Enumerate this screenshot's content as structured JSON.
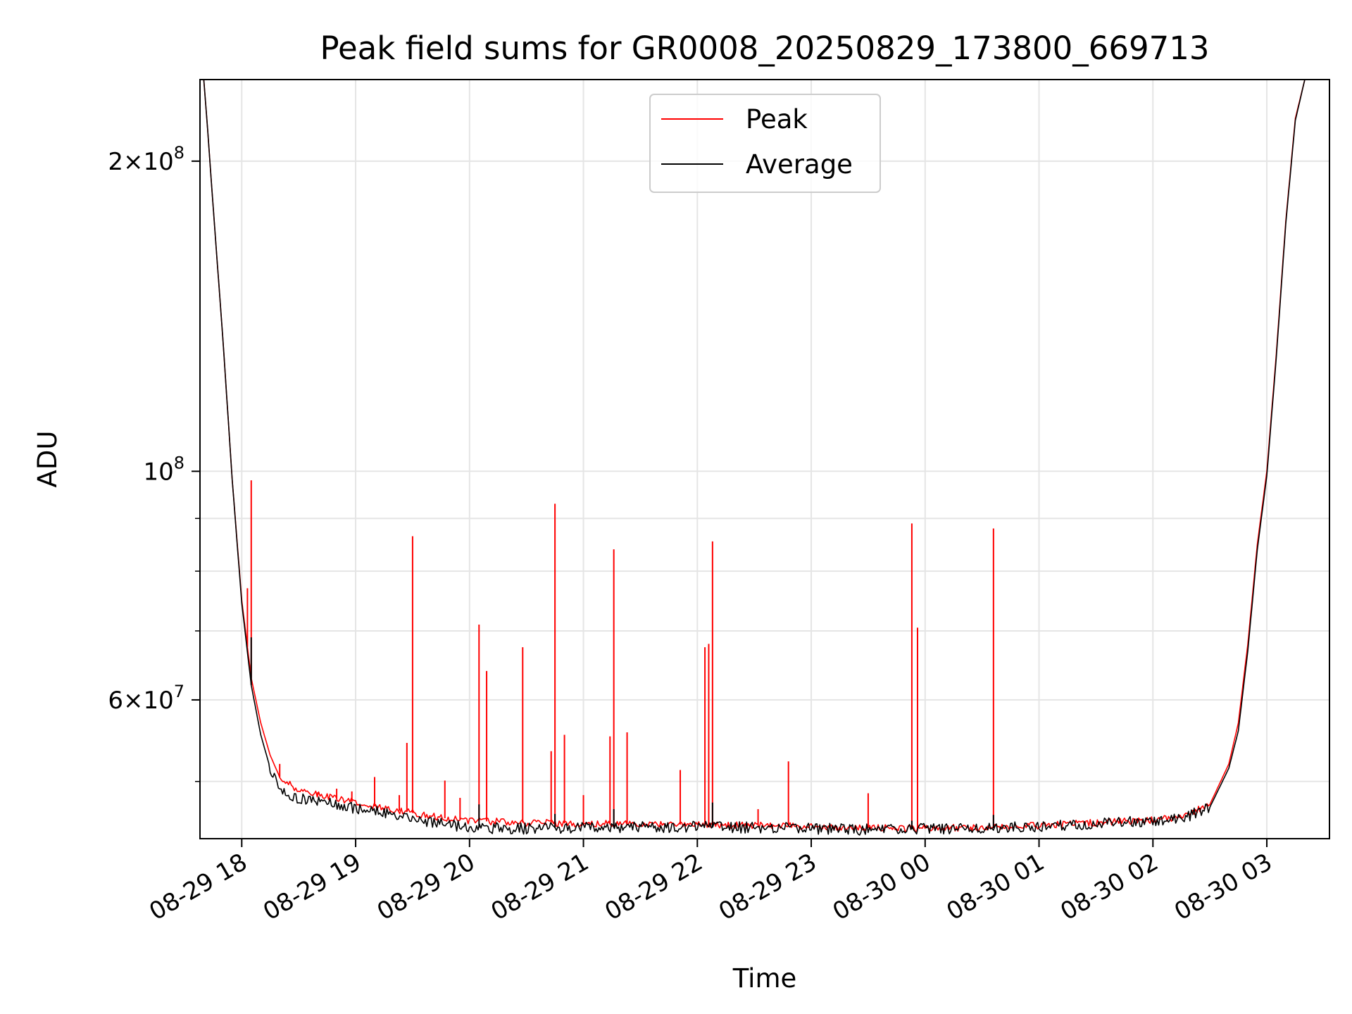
{
  "chart_data": {
    "type": "line",
    "title": "Peak field sums for GR0008_20250829_173800_669713",
    "xlabel": "Time",
    "ylabel": "ADU",
    "y_scale": "log",
    "ylim": [
      44000000,
      240000000
    ],
    "xlim": [
      "2025-08-29 17:38",
      "2025-08-30 03:33"
    ],
    "grid": true,
    "legend_position": "upper center",
    "x_ticks": [
      "08-29 18",
      "08-29 19",
      "08-29 20",
      "08-29 21",
      "08-29 22",
      "08-29 23",
      "08-30 00",
      "08-30 01",
      "08-30 02",
      "08-30 03"
    ],
    "y_ticks": [
      {
        "value": 200000000,
        "mant": "2",
        "times": "×",
        "base": "10",
        "exp": "8"
      },
      {
        "value": 100000000,
        "mant": "",
        "times": "",
        "base": "10",
        "exp": "8"
      },
      {
        "value": 60000000,
        "mant": "6",
        "times": "×",
        "base": "10",
        "exp": "7"
      }
    ],
    "series": [
      {
        "name": "Peak",
        "color": "#ff0000",
        "points": [
          [
            "2025-08-29 17:40",
            240000000
          ],
          [
            "2025-08-29 17:42",
            215000000
          ],
          [
            "2025-08-29 17:45",
            180000000
          ],
          [
            "2025-08-29 17:50",
            135000000
          ],
          [
            "2025-08-29 17:55",
            98000000
          ],
          [
            "2025-08-29 18:00",
            75000000
          ],
          [
            "2025-08-29 18:05",
            63000000
          ],
          [
            "2025-08-29 18:10",
            57000000
          ],
          [
            "2025-08-29 18:15",
            53000000
          ],
          [
            "2025-08-29 18:20",
            50500000
          ],
          [
            "2025-08-29 18:30",
            49000000
          ],
          [
            "2025-08-29 18:45",
            48300000
          ],
          [
            "2025-08-29 19:00",
            47700000
          ],
          [
            "2025-08-29 19:15",
            47100000
          ],
          [
            "2025-08-29 19:30",
            46600000
          ],
          [
            "2025-08-29 19:45",
            46100000
          ],
          [
            "2025-08-29 20:00",
            45800000
          ],
          [
            "2025-08-29 20:30",
            45600000
          ],
          [
            "2025-08-29 21:00",
            45500000
          ],
          [
            "2025-08-29 22:00",
            45400000
          ],
          [
            "2025-08-29 23:00",
            45200000
          ],
          [
            "2025-08-29 23:30",
            45050000
          ],
          [
            "2025-08-30 00:00",
            45050000
          ],
          [
            "2025-08-30 00:30",
            45100000
          ],
          [
            "2025-08-30 01:00",
            45300000
          ],
          [
            "2025-08-30 01:30",
            45600000
          ],
          [
            "2025-08-30 02:00",
            45900000
          ],
          [
            "2025-08-30 02:15",
            46200000
          ],
          [
            "2025-08-30 02:30",
            47500000
          ],
          [
            "2025-08-30 02:40",
            52000000
          ],
          [
            "2025-08-30 02:45",
            57000000
          ],
          [
            "2025-08-30 02:50",
            68000000
          ],
          [
            "2025-08-30 02:55",
            85000000
          ],
          [
            "2025-08-30 03:00",
            100000000
          ],
          [
            "2025-08-30 03:05",
            130000000
          ],
          [
            "2025-08-30 03:10",
            175000000
          ],
          [
            "2025-08-30 03:15",
            220000000
          ],
          [
            "2025-08-30 03:20",
            240000000
          ],
          [
            "2025-08-30 03:33",
            240000000
          ]
        ],
        "spikes": [
          [
            "2025-08-29 18:05",
            98000000
          ],
          [
            "2025-08-29 18:03",
            77000000
          ],
          [
            "2025-08-29 18:20",
            52000000
          ],
          [
            "2025-08-29 18:40",
            48800000
          ],
          [
            "2025-08-29 18:50",
            49200000
          ],
          [
            "2025-08-29 18:58",
            48900000
          ],
          [
            "2025-08-29 19:10",
            50500000
          ],
          [
            "2025-08-29 19:23",
            48500000
          ],
          [
            "2025-08-29 19:27",
            54500000
          ],
          [
            "2025-08-29 19:30",
            86500000
          ],
          [
            "2025-08-29 19:47",
            50100000
          ],
          [
            "2025-08-29 19:55",
            48200000
          ],
          [
            "2025-08-29 20:05",
            71000000
          ],
          [
            "2025-08-29 20:09",
            64000000
          ],
          [
            "2025-08-29 20:28",
            67500000
          ],
          [
            "2025-08-29 20:43",
            53500000
          ],
          [
            "2025-08-29 20:45",
            93000000
          ],
          [
            "2025-08-29 20:50",
            55500000
          ],
          [
            "2025-08-29 21:00",
            48500000
          ],
          [
            "2025-08-29 21:14",
            55300000
          ],
          [
            "2025-08-29 21:16",
            84000000
          ],
          [
            "2025-08-29 21:23",
            55800000
          ],
          [
            "2025-08-29 21:51",
            51300000
          ],
          [
            "2025-08-29 22:04",
            67500000
          ],
          [
            "2025-08-29 22:06",
            68000000
          ],
          [
            "2025-08-29 22:08",
            85500000
          ],
          [
            "2025-08-29 22:32",
            47000000
          ],
          [
            "2025-08-29 22:48",
            52300000
          ],
          [
            "2025-08-29 23:30",
            48700000
          ],
          [
            "2025-08-29 23:53",
            89000000
          ],
          [
            "2025-08-29 23:56",
            70500000
          ],
          [
            "2025-08-30 00:36",
            88000000
          ]
        ]
      },
      {
        "name": "Average",
        "color": "#000000",
        "points": [
          [
            "2025-08-29 17:40",
            240000000
          ],
          [
            "2025-08-29 17:42",
            215000000
          ],
          [
            "2025-08-29 17:45",
            180000000
          ],
          [
            "2025-08-29 17:50",
            135000000
          ],
          [
            "2025-08-29 17:55",
            98000000
          ],
          [
            "2025-08-29 18:00",
            74500000
          ],
          [
            "2025-08-29 18:05",
            62000000
          ],
          [
            "2025-08-29 18:10",
            55500000
          ],
          [
            "2025-08-29 18:15",
            51500000
          ],
          [
            "2025-08-29 18:20",
            49300000
          ],
          [
            "2025-08-29 18:30",
            48100000
          ],
          [
            "2025-08-29 18:45",
            47700000
          ],
          [
            "2025-08-29 19:00",
            47100000
          ],
          [
            "2025-08-29 19:15",
            46600000
          ],
          [
            "2025-08-29 19:30",
            46000000
          ],
          [
            "2025-08-29 19:45",
            45500000
          ],
          [
            "2025-08-29 20:00",
            45100000
          ],
          [
            "2025-08-29 20:30",
            45000000
          ],
          [
            "2025-08-29 21:00",
            45100000
          ],
          [
            "2025-08-29 22:00",
            45200000
          ],
          [
            "2025-08-29 23:00",
            45000000
          ],
          [
            "2025-08-29 23:30",
            44900000
          ],
          [
            "2025-08-30 00:00",
            44950000
          ],
          [
            "2025-08-30 00:30",
            45000000
          ],
          [
            "2025-08-30 01:00",
            45200000
          ],
          [
            "2025-08-30 01:30",
            45500000
          ],
          [
            "2025-08-30 02:00",
            45800000
          ],
          [
            "2025-08-30 02:15",
            46000000
          ],
          [
            "2025-08-30 02:30",
            47200000
          ],
          [
            "2025-08-30 02:40",
            51500000
          ],
          [
            "2025-08-30 02:45",
            56000000
          ],
          [
            "2025-08-30 02:50",
            67000000
          ],
          [
            "2025-08-30 02:55",
            84000000
          ],
          [
            "2025-08-30 03:00",
            99000000
          ],
          [
            "2025-08-30 03:05",
            129000000
          ],
          [
            "2025-08-30 03:10",
            174000000
          ],
          [
            "2025-08-30 03:15",
            219000000
          ],
          [
            "2025-08-30 03:20",
            240000000
          ],
          [
            "2025-08-30 03:33",
            240000000
          ]
        ],
        "spikes": [
          [
            "2025-08-29 18:05",
            69000000
          ],
          [
            "2025-08-29 20:05",
            47500000
          ],
          [
            "2025-08-29 20:45",
            46500000
          ],
          [
            "2025-08-29 21:16",
            47000000
          ],
          [
            "2025-08-29 22:08",
            47700000
          ],
          [
            "2025-08-29 23:53",
            45800000
          ],
          [
            "2025-08-30 00:36",
            46400000
          ]
        ]
      }
    ]
  }
}
